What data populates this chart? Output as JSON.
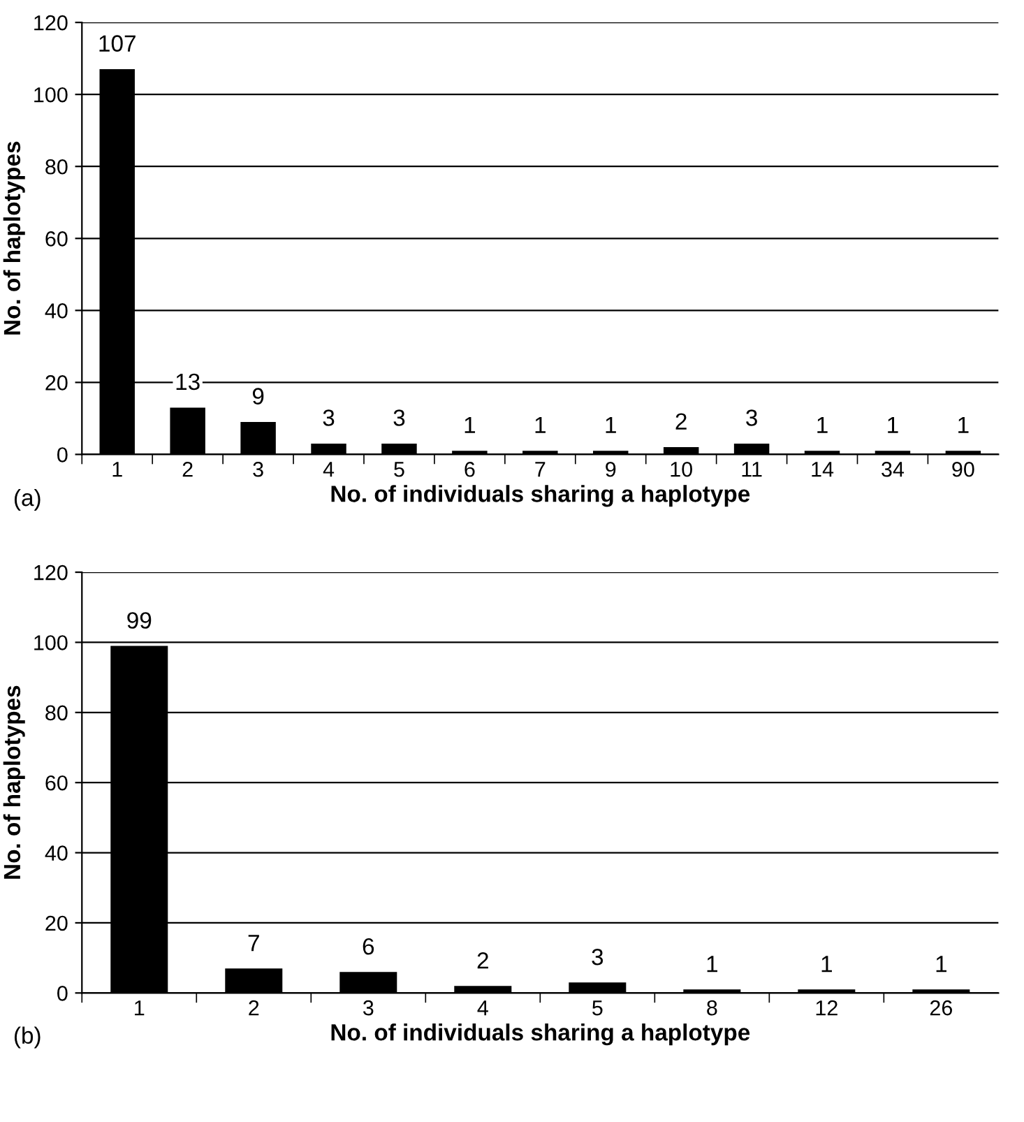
{
  "chart_data": [
    {
      "type": "bar",
      "categories": [
        "1",
        "2",
        "3",
        "4",
        "5",
        "6",
        "7",
        "9",
        "10",
        "11",
        "14",
        "34",
        "90"
      ],
      "values": [
        107,
        13,
        9,
        3,
        3,
        1,
        1,
        1,
        2,
        3,
        1,
        1,
        1
      ],
      "color": "#000000",
      "ylim": [
        0,
        120
      ],
      "yticks": [
        0,
        20,
        40,
        60,
        80,
        100,
        120
      ],
      "xlabel": "No. of individuals sharing a haplotype",
      "ylabel": "No. of haplotypes",
      "grid": "y",
      "data_labels": true,
      "annotations": [
        "(a)"
      ]
    },
    {
      "type": "bar",
      "categories": [
        "1",
        "2",
        "3",
        "4",
        "5",
        "8",
        "12",
        "26"
      ],
      "values": [
        99,
        7,
        6,
        2,
        3,
        1,
        1,
        1
      ],
      "color": "#000000",
      "ylim": [
        0,
        120
      ],
      "yticks": [
        0,
        20,
        40,
        60,
        80,
        100,
        120
      ],
      "xlabel": "No. of individuals sharing a haplotype",
      "ylabel": "No. of haplotypes",
      "grid": "y",
      "data_labels": true,
      "annotations": [
        "(b)"
      ]
    }
  ]
}
